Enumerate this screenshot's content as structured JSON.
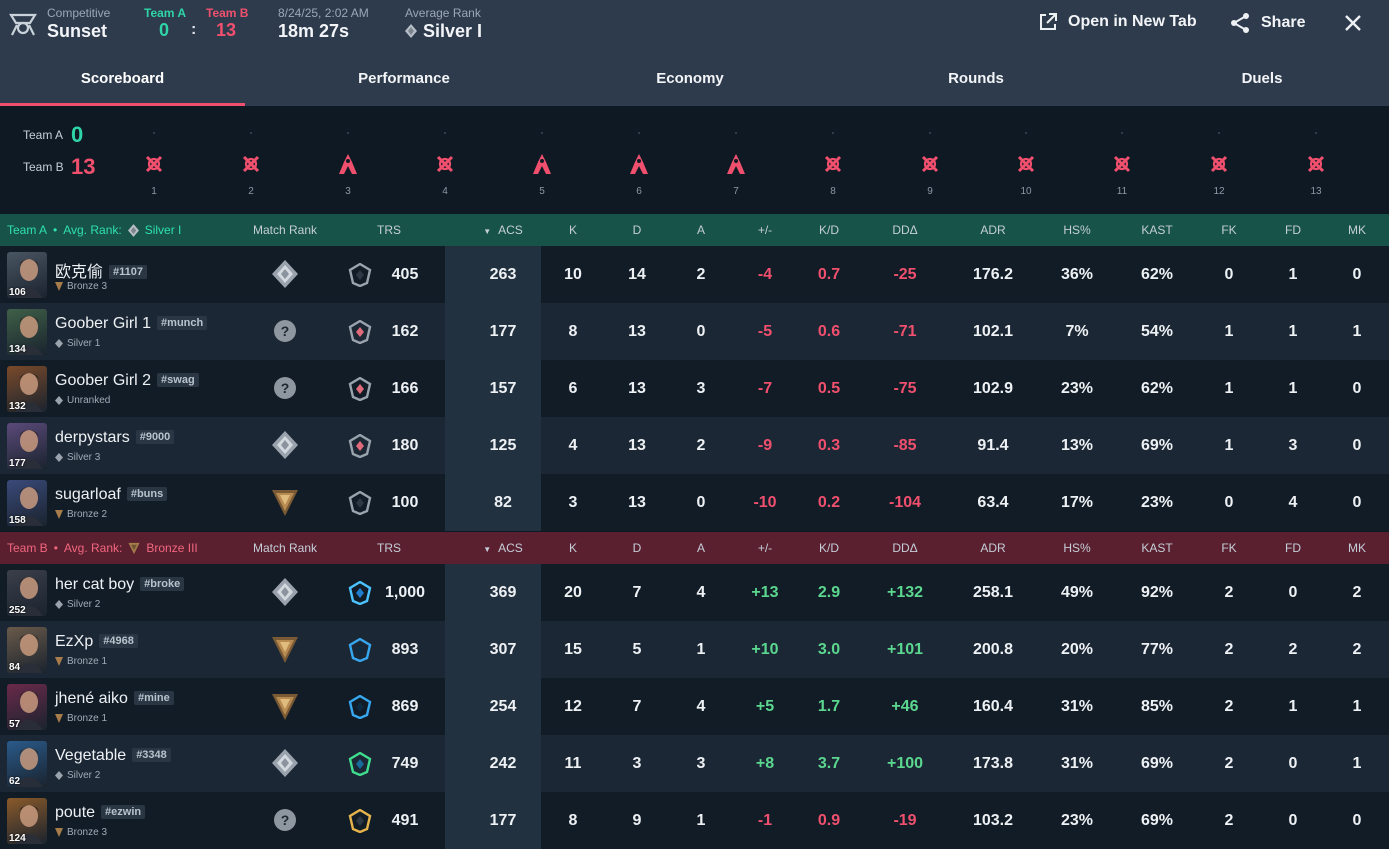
{
  "header": {
    "mode_label": "Competitive",
    "map": "Sunset",
    "team_a_label": "Team A",
    "team_b_label": "Team B",
    "team_a_score": "0",
    "score_separator": ":",
    "team_b_score": "13",
    "datetime": "8/24/25, 2:02 AM",
    "duration": "18m 27s",
    "avg_rank_label": "Average Rank",
    "avg_rank": "Silver I",
    "open_tab_label": "Open in New Tab",
    "share_label": "Share"
  },
  "tabs": [
    "Scoreboard",
    "Performance",
    "Economy",
    "Rounds",
    "Duels"
  ],
  "timeline": {
    "team_a_label": "Team A",
    "team_a_score": "0",
    "team_b_label": "Team B",
    "team_b_score": "13",
    "rounds": [
      {
        "n": "1",
        "win": "elimination"
      },
      {
        "n": "2",
        "win": "elimination"
      },
      {
        "n": "3",
        "win": "defuse"
      },
      {
        "n": "4",
        "win": "elimination"
      },
      {
        "n": "5",
        "win": "defuse"
      },
      {
        "n": "6",
        "win": "defuse"
      },
      {
        "n": "7",
        "win": "defuse"
      },
      {
        "n": "8",
        "win": "elimination"
      },
      {
        "n": "9",
        "win": "elimination"
      },
      {
        "n": "10",
        "win": "elimination"
      },
      {
        "n": "11",
        "win": "elimination"
      },
      {
        "n": "12",
        "win": "elimination"
      },
      {
        "n": "13",
        "win": "elimination"
      }
    ]
  },
  "columns": [
    "Match Rank",
    "TRS",
    "ACS",
    "K",
    "D",
    "A",
    "+/-",
    "K/D",
    "DDΔ",
    "ADR",
    "HS%",
    "KAST",
    "FK",
    "FD",
    "MK"
  ],
  "teams": [
    {
      "name": "Team A",
      "bullet": "•",
      "avg_label": "Avg. Rank:",
      "avg_rank": "Silver I",
      "color": "#2fe0b0",
      "players": [
        {
          "name": "欧克偷",
          "tag": "#1107",
          "rank": "Bronze 3",
          "level": "106",
          "match_rank": "silver",
          "trs_icon": "grey",
          "trs": "405",
          "acs": "263",
          "k": "10",
          "d": "14",
          "a": "2",
          "pm": "-4",
          "kd": "0.7",
          "dd": "-25",
          "adr": "176.2",
          "hs": "36%",
          "kast": "62%",
          "fk": "0",
          "fd": "1",
          "mk": "0",
          "avatar_color": "#4a5563"
        },
        {
          "name": "Goober Girl 1",
          "tag": "#munch",
          "rank": "Silver 1",
          "level": "134",
          "match_rank": "unknown",
          "trs_icon": "grey-red",
          "trs": "162",
          "acs": "177",
          "k": "8",
          "d": "13",
          "a": "0",
          "pm": "-5",
          "kd": "0.6",
          "dd": "-71",
          "adr": "102.1",
          "hs": "7%",
          "kast": "54%",
          "fk": "1",
          "fd": "1",
          "mk": "1",
          "avatar_color": "#3f6048"
        },
        {
          "name": "Goober Girl 2",
          "tag": "#swag",
          "rank": "Unranked",
          "level": "132",
          "match_rank": "unknown",
          "trs_icon": "grey-red",
          "trs": "166",
          "acs": "157",
          "k": "6",
          "d": "13",
          "a": "3",
          "pm": "-7",
          "kd": "0.5",
          "dd": "-75",
          "adr": "102.9",
          "hs": "23%",
          "kast": "62%",
          "fk": "1",
          "fd": "1",
          "mk": "0",
          "avatar_color": "#7a4a2a"
        },
        {
          "name": "derpystars",
          "tag": "#9000",
          "rank": "Silver 3",
          "level": "177",
          "match_rank": "silver",
          "trs_icon": "grey-red",
          "trs": "180",
          "acs": "125",
          "k": "4",
          "d": "13",
          "a": "2",
          "pm": "-9",
          "kd": "0.3",
          "dd": "-85",
          "adr": "91.4",
          "hs": "13%",
          "kast": "69%",
          "fk": "1",
          "fd": "3",
          "mk": "0",
          "avatar_color": "#5b4a7a"
        },
        {
          "name": "sugarloaf",
          "tag": "#buns",
          "rank": "Bronze 2",
          "level": "158",
          "match_rank": "bronze",
          "trs_icon": "grey",
          "trs": "100",
          "acs": "82",
          "k": "3",
          "d": "13",
          "a": "0",
          "pm": "-10",
          "kd": "0.2",
          "dd": "-104",
          "adr": "63.4",
          "hs": "17%",
          "kast": "23%",
          "fk": "0",
          "fd": "4",
          "mk": "0",
          "avatar_color": "#3a4a7a"
        }
      ]
    },
    {
      "name": "Team B",
      "bullet": "•",
      "avg_label": "Avg. Rank:",
      "avg_rank": "Bronze III",
      "color": "#f3667e",
      "players": [
        {
          "name": "her cat boy",
          "tag": "#broke",
          "rank": "Silver 2",
          "level": "252",
          "match_rank": "silver",
          "trs_icon": "blue",
          "trs": "1,000",
          "acs": "369",
          "k": "20",
          "d": "7",
          "a": "4",
          "pm": "+13",
          "kd": "2.9",
          "dd": "+132",
          "adr": "258.1",
          "hs": "49%",
          "kast": "92%",
          "fk": "2",
          "fd": "0",
          "mk": "2",
          "avatar_color": "#3b3f4a"
        },
        {
          "name": "EzXp",
          "tag": "#4968",
          "rank": "Bronze 1",
          "level": "84",
          "match_rank": "bronze",
          "trs_icon": "blue-dark",
          "trs": "893",
          "acs": "307",
          "k": "15",
          "d": "5",
          "a": "1",
          "pm": "+10",
          "kd": "3.0",
          "dd": "+101",
          "adr": "200.8",
          "hs": "20%",
          "kast": "77%",
          "fk": "2",
          "fd": "2",
          "mk": "2",
          "avatar_color": "#6a5a4a"
        },
        {
          "name": "jhené aiko",
          "tag": "#mine",
          "rank": "Bronze 1",
          "level": "57",
          "match_rank": "bronze",
          "trs_icon": "blue-dark",
          "trs": "869",
          "acs": "254",
          "k": "12",
          "d": "7",
          "a": "4",
          "pm": "+5",
          "kd": "1.7",
          "dd": "+46",
          "adr": "160.4",
          "hs": "31%",
          "kast": "85%",
          "fk": "2",
          "fd": "1",
          "mk": "1",
          "avatar_color": "#6a2a4a"
        },
        {
          "name": "Vegetable",
          "tag": "#3348",
          "rank": "Silver 2",
          "level": "62",
          "match_rank": "silver",
          "trs_icon": "green",
          "trs": "749",
          "acs": "242",
          "k": "11",
          "d": "3",
          "a": "3",
          "pm": "+8",
          "kd": "3.7",
          "dd": "+100",
          "adr": "173.8",
          "hs": "31%",
          "kast": "69%",
          "fk": "2",
          "fd": "0",
          "mk": "1",
          "avatar_color": "#2a5a8a"
        },
        {
          "name": "poute",
          "tag": "#ezwin",
          "rank": "Bronze 3",
          "level": "124",
          "match_rank": "unknown",
          "trs_icon": "gold",
          "trs": "491",
          "acs": "177",
          "k": "8",
          "d": "9",
          "a": "1",
          "pm": "-1",
          "kd": "0.9",
          "dd": "-19",
          "adr": "103.2",
          "hs": "23%",
          "kast": "69%",
          "fk": "2",
          "fd": "0",
          "mk": "0",
          "avatar_color": "#8a5a2a"
        }
      ]
    }
  ]
}
